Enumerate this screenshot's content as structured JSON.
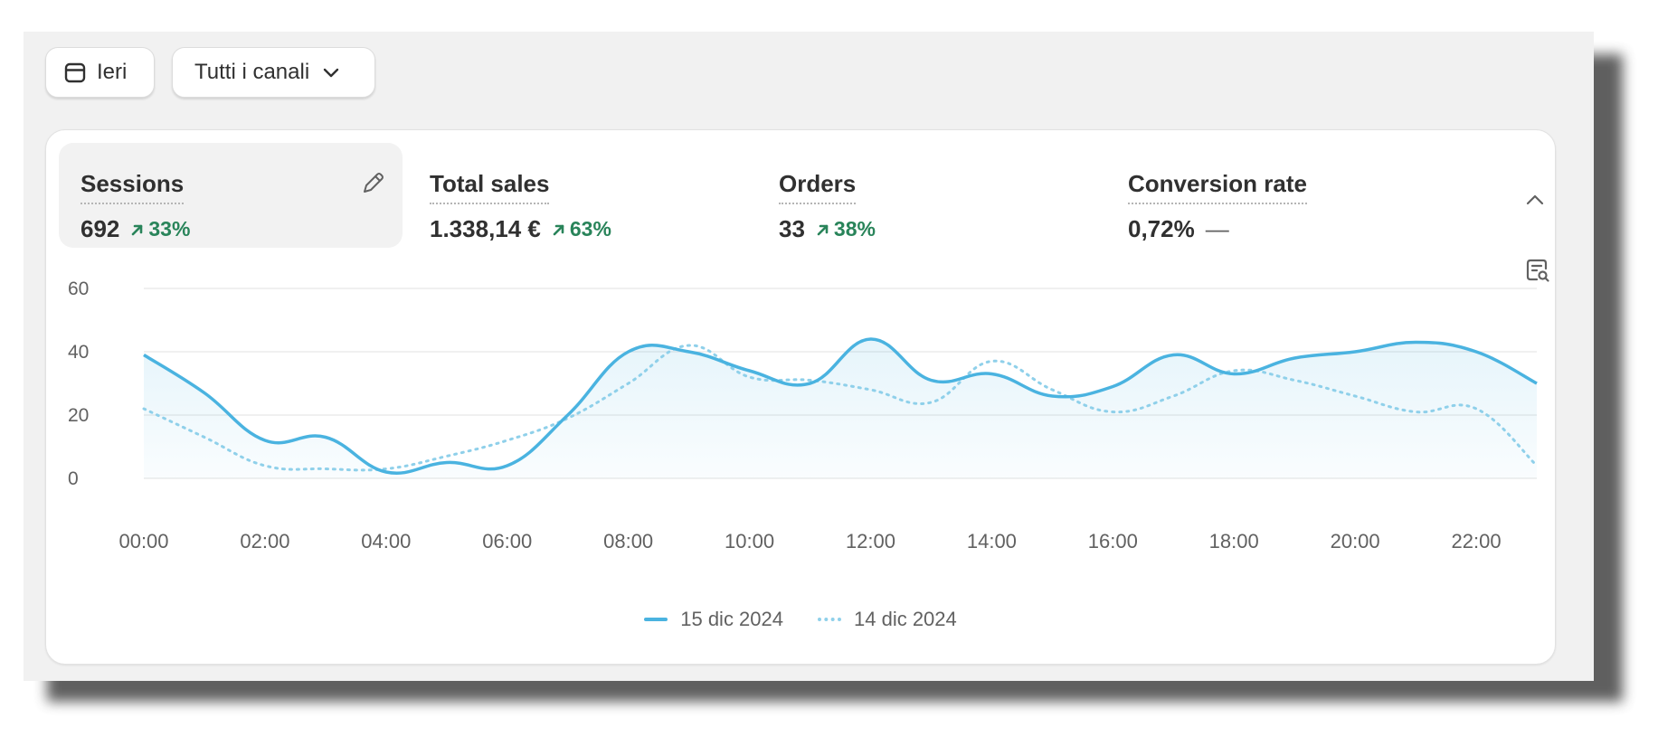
{
  "filters": {
    "date_label": "Ieri",
    "channel_label": "Tutti i canali"
  },
  "metrics": [
    {
      "label": "Sessions",
      "value": "692",
      "change": "33%",
      "direction": "up"
    },
    {
      "label": "Total sales",
      "value": "1.338,14 €",
      "change": "63%",
      "direction": "up"
    },
    {
      "label": "Orders",
      "value": "33",
      "change": "38%",
      "direction": "up"
    },
    {
      "label": "Conversion rate",
      "value": "0,72%",
      "change": "—",
      "direction": "flat"
    }
  ],
  "colors": {
    "current": "#4ab3e0",
    "previous": "#8fd0ea",
    "positive": "#29845a"
  },
  "chart_data": {
    "type": "line",
    "title": "",
    "xlabel": "",
    "ylabel": "",
    "ylim": [
      0,
      60
    ],
    "yticks": [
      "0",
      "20",
      "40",
      "60"
    ],
    "categories": [
      "00:00",
      "01:00",
      "02:00",
      "03:00",
      "04:00",
      "05:00",
      "06:00",
      "07:00",
      "08:00",
      "09:00",
      "10:00",
      "11:00",
      "12:00",
      "13:00",
      "14:00",
      "15:00",
      "16:00",
      "17:00",
      "18:00",
      "19:00",
      "20:00",
      "21:00",
      "22:00",
      "23:00"
    ],
    "xtick_labels": [
      "00:00",
      "02:00",
      "04:00",
      "06:00",
      "08:00",
      "10:00",
      "12:00",
      "14:00",
      "16:00",
      "18:00",
      "20:00",
      "22:00"
    ],
    "series": [
      {
        "name": "15 dic 2024",
        "style": "solid",
        "values": [
          39,
          27,
          12,
          13,
          2,
          5,
          4,
          20,
          40,
          40,
          34,
          30,
          44,
          31,
          33,
          26,
          29,
          39,
          33,
          38,
          40,
          43,
          40,
          30
        ]
      },
      {
        "name": "14 dic 2024",
        "style": "dotted",
        "values": [
          22,
          13,
          4,
          3,
          3,
          7,
          12,
          19,
          30,
          42,
          32,
          31,
          28,
          24,
          37,
          28,
          21,
          26,
          34,
          31,
          26,
          21,
          22,
          4
        ]
      }
    ],
    "grid": true,
    "legend_position": "bottom-center"
  }
}
